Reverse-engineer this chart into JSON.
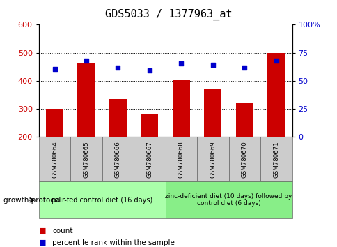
{
  "title": "GDS5033 / 1377963_at",
  "categories": [
    "GSM780664",
    "GSM780665",
    "GSM780666",
    "GSM780667",
    "GSM780668",
    "GSM780669",
    "GSM780670",
    "GSM780671"
  ],
  "bar_values": [
    300,
    465,
    335,
    280,
    403,
    372,
    323,
    500
  ],
  "dot_values_left": [
    443,
    473,
    448,
    438,
    462,
    457,
    447,
    473
  ],
  "bar_color": "#cc0000",
  "dot_color": "#0000cc",
  "ylim_left": [
    200,
    600
  ],
  "ylim_right": [
    0,
    100
  ],
  "yticks_left": [
    200,
    300,
    400,
    500,
    600
  ],
  "yticks_right": [
    0,
    25,
    50,
    75,
    100
  ],
  "ytick_labels_right": [
    "0",
    "25",
    "50",
    "75",
    "100%"
  ],
  "grid_lines": [
    300,
    400,
    500
  ],
  "group1_label": "pair-fed control diet (16 days)",
  "group2_label": "zinc-deficient diet (10 days) followed by\ncontrol diet (6 days)",
  "group1_color": "#aaffaa",
  "group2_color": "#88ee88",
  "sample_box_color": "#cccccc",
  "protocol_label": "growth protocol",
  "legend_count": "count",
  "legend_percentile": "percentile rank within the sample",
  "title_fontsize": 11,
  "tick_fontsize": 8,
  "label_fontsize": 8
}
